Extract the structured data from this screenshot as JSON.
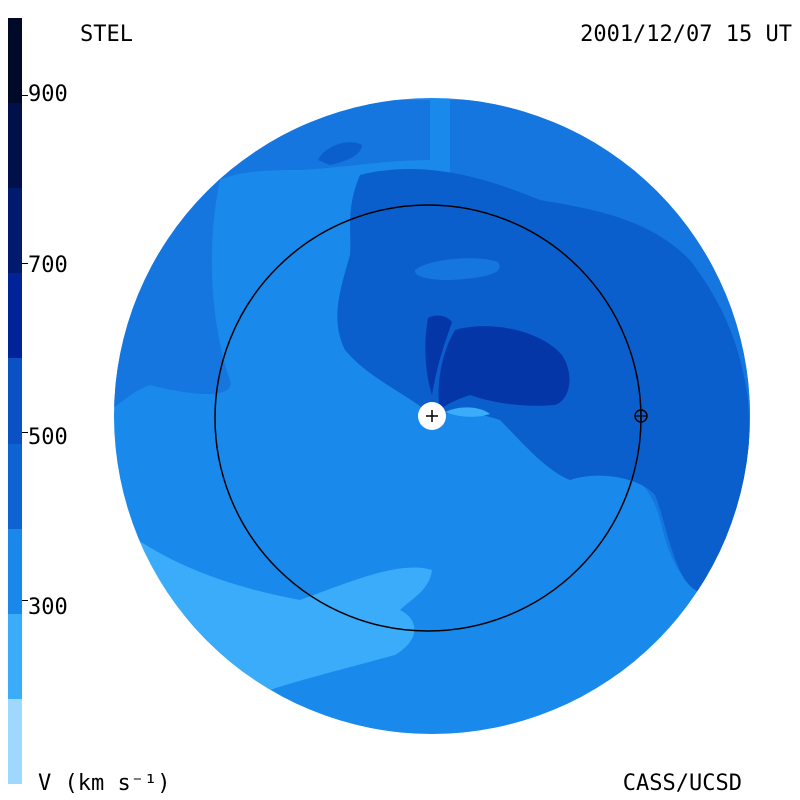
{
  "header": {
    "instrument": "STEL",
    "timestamp": "2001/12/07 15 UT"
  },
  "footer": {
    "units_label": "V (km s⁻¹)",
    "credit": "CASS/UCSD"
  },
  "colorbar": {
    "ticks": [
      "900",
      "700",
      "500",
      "300"
    ],
    "bands": [
      {
        "color": "#000a28",
        "from": 900,
        "to": 1000
      },
      {
        "color": "#00104a",
        "from": 800,
        "to": 900
      },
      {
        "color": "#001a6e",
        "from": 700,
        "to": 800
      },
      {
        "color": "#00239a",
        "from": 600,
        "to": 700
      },
      {
        "color": "#0a52c4",
        "from": 500,
        "to": 600
      },
      {
        "color": "#0d63d2",
        "from": 400,
        "to": 500
      },
      {
        "color": "#1a88ea",
        "from": 300,
        "to": 400
      },
      {
        "color": "#3aacfa",
        "from": 200,
        "to": 300
      },
      {
        "color": "#9ed8fc",
        "from": 100,
        "to": 200
      }
    ]
  },
  "markers": {
    "sun_symbol": "+",
    "earth_symbol": "⊕"
  },
  "colors": {
    "speed_400_500": "#1576e0",
    "speed_500_600": "#0b5fcc",
    "speed_600_700": "#0536a8",
    "speed_300_400": "#1989ec",
    "speed_200_300": "#3aacfa",
    "orbit": "#000000"
  }
}
